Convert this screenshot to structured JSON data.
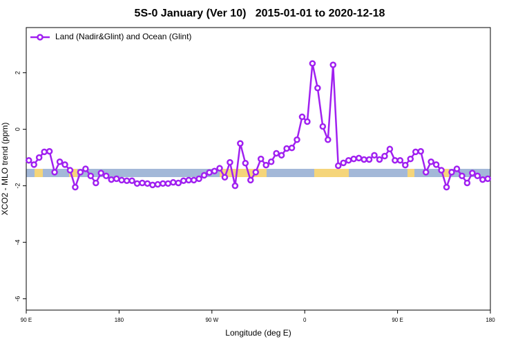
{
  "chart_data": {
    "type": "line",
    "title": "5S-0 January (Ver 10)   2015-01-01 to 2020-12-18",
    "xlabel": "Longitude (deg E)",
    "ylabel": "XCO2 - MLO trend (ppm)",
    "xlim": [
      90,
      540
    ],
    "ylim": [
      -6.4,
      3.6
    ],
    "xticks": [
      {
        "value": 90,
        "label": "90 E"
      },
      180,
      {
        "value": 270,
        "label": "90 W"
      },
      {
        "value": 360,
        "label": "0"
      },
      {
        "value": 450,
        "label": "90 E"
      },
      {
        "value": 540,
        "label": "180"
      }
    ],
    "yticks": [
      -6,
      -4,
      -2,
      0,
      2
    ],
    "legend": "top-left",
    "x": [
      92.5,
      97.5,
      102.5,
      107.5,
      112.5,
      117.5,
      122.5,
      127.5,
      132.5,
      137.5,
      142.5,
      147.5,
      152.5,
      157.5,
      162.5,
      167.5,
      172.5,
      177.5,
      182.5,
      187.5,
      192.5,
      197.5,
      202.5,
      207.5,
      212.5,
      217.5,
      222.5,
      227.5,
      232.5,
      237.5,
      242.5,
      247.5,
      252.5,
      257.5,
      262.5,
      267.5,
      272.5,
      277.5,
      282.5,
      287.5,
      292.5,
      297.5,
      302.5,
      307.5,
      312.5,
      317.5,
      322.5,
      327.5,
      332.5,
      337.5,
      342.5,
      347.5,
      352.5,
      357.5,
      362.5,
      367.5,
      372.5,
      377.5,
      382.5,
      387.5,
      392.5,
      397.5,
      402.5,
      407.5,
      412.5,
      417.5,
      422.5,
      427.5,
      432.5,
      437.5,
      442.5,
      447.5,
      452.5,
      457.5,
      462.5,
      467.5,
      472.5,
      477.5,
      482.5,
      487.5,
      492.5,
      497.5,
      502.5,
      507.5,
      512.5,
      517.5,
      522.5,
      527.5,
      532.5,
      537.5
    ],
    "series": [
      {
        "name": "Land (Nadir&Glint) and Ocean (Glint)",
        "color": "#a020f0",
        "values": [
          -1.1,
          -1.25,
          -1.0,
          -0.8,
          -0.78,
          -1.52,
          -1.15,
          -1.25,
          -1.45,
          -2.05,
          -1.52,
          -1.4,
          -1.65,
          -1.9,
          -1.55,
          -1.65,
          -1.78,
          -1.75,
          -1.8,
          -1.82,
          -1.82,
          -1.92,
          -1.9,
          -1.92,
          -1.97,
          -1.95,
          -1.92,
          -1.92,
          -1.88,
          -1.9,
          -1.82,
          -1.8,
          -1.8,
          -1.75,
          -1.63,
          -1.53,
          -1.48,
          -1.38,
          -1.7,
          -1.17,
          -2.0,
          -0.5,
          -1.2,
          -1.8,
          -1.52,
          -1.05,
          -1.27,
          -1.15,
          -0.85,
          -0.92,
          -0.68,
          -0.66,
          -0.37,
          0.44,
          0.27,
          2.33,
          1.46,
          0.1,
          -0.37,
          2.28,
          -1.29,
          -1.19,
          -1.1,
          -1.05,
          -1.02,
          -1.07,
          -1.07,
          -0.92,
          -1.07,
          -0.95,
          -0.7,
          -1.1,
          -1.1,
          -1.27,
          -1.05,
          -0.8,
          -0.78,
          -1.52,
          -1.15,
          -1.25,
          -1.45,
          -2.05,
          -1.52,
          -1.4,
          -1.65,
          -1.9,
          -1.55,
          -1.65,
          -1.78,
          -1.75
        ]
      }
    ]
  }
}
